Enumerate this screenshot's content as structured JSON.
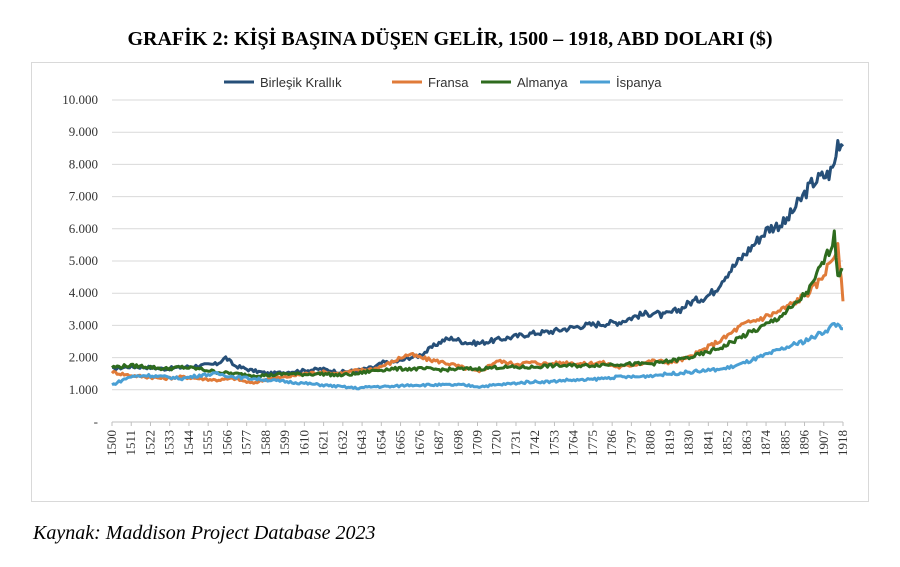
{
  "title": "GRAFİK 2: KİŞİ BAŞINA DÜŞEN GELİR, 1500 – 1918, ABD DOLARI ($)",
  "source": "Kaynak: Maddison Project Database 2023",
  "chart_data": {
    "type": "line",
    "title": "GRAFİK 2: KİŞİ BAŞINA DÜŞEN GELİR, 1500 – 1918, ABD DOLARI ($)",
    "xlabel": "",
    "ylabel": "",
    "xlim": [
      1500,
      1918
    ],
    "ylim": [
      0,
      10000
    ],
    "grid": true,
    "legend": "top-center",
    "y_ticks": [
      {
        "value": 0,
        "label": "-"
      },
      {
        "value": 1000,
        "label": "1.000"
      },
      {
        "value": 2000,
        "label": "2.000"
      },
      {
        "value": 3000,
        "label": "3.000"
      },
      {
        "value": 4000,
        "label": "4.000"
      },
      {
        "value": 5000,
        "label": "5.000"
      },
      {
        "value": 6000,
        "label": "6.000"
      },
      {
        "value": 7000,
        "label": "7.000"
      },
      {
        "value": 8000,
        "label": "8.000"
      },
      {
        "value": 9000,
        "label": "9.000"
      },
      {
        "value": 10000,
        "label": "10.000"
      }
    ],
    "x_ticks": [
      1500,
      1511,
      1522,
      1533,
      1544,
      1555,
      1566,
      1577,
      1588,
      1599,
      1610,
      1621,
      1632,
      1643,
      1654,
      1665,
      1676,
      1687,
      1698,
      1709,
      1720,
      1731,
      1742,
      1753,
      1764,
      1775,
      1786,
      1797,
      1808,
      1819,
      1830,
      1841,
      1852,
      1863,
      1874,
      1885,
      1896,
      1907,
      1918
    ],
    "series": [
      {
        "name": "Birleşik Krallık",
        "color": "#264f78",
        "x": [
          1500,
          1510,
          1520,
          1530,
          1540,
          1550,
          1560,
          1565,
          1570,
          1580,
          1590,
          1600,
          1610,
          1620,
          1630,
          1640,
          1650,
          1655,
          1660,
          1665,
          1670,
          1675,
          1680,
          1685,
          1690,
          1695,
          1700,
          1705,
          1710,
          1715,
          1720,
          1730,
          1740,
          1750,
          1760,
          1770,
          1780,
          1790,
          1800,
          1810,
          1815,
          1820,
          1825,
          1830,
          1835,
          1840,
          1845,
          1850,
          1855,
          1860,
          1865,
          1870,
          1875,
          1880,
          1885,
          1890,
          1895,
          1900,
          1905,
          1910,
          1913,
          1915,
          1918
        ],
        "y": [
          1650,
          1720,
          1700,
          1650,
          1700,
          1750,
          1800,
          2000,
          1750,
          1600,
          1500,
          1550,
          1600,
          1650,
          1550,
          1600,
          1700,
          1850,
          1850,
          1900,
          2000,
          2050,
          2200,
          2400,
          2550,
          2600,
          2500,
          2450,
          2450,
          2500,
          2550,
          2650,
          2750,
          2800,
          2900,
          3000,
          3050,
          3100,
          3300,
          3400,
          3300,
          3400,
          3500,
          3700,
          3800,
          3900,
          4100,
          4500,
          4800,
          5100,
          5400,
          5700,
          6000,
          6100,
          6200,
          6600,
          7000,
          7400,
          7600,
          7700,
          8000,
          8700,
          8650
        ]
      },
      {
        "name": "Fransa",
        "color": "#e07b39",
        "x": [
          1500,
          1510,
          1520,
          1530,
          1540,
          1550,
          1560,
          1570,
          1580,
          1590,
          1600,
          1610,
          1620,
          1630,
          1640,
          1650,
          1660,
          1665,
          1670,
          1680,
          1690,
          1700,
          1710,
          1720,
          1730,
          1740,
          1750,
          1760,
          1770,
          1780,
          1790,
          1800,
          1810,
          1820,
          1830,
          1840,
          1850,
          1860,
          1870,
          1880,
          1890,
          1900,
          1905,
          1910,
          1913,
          1915,
          1918
        ],
        "y": [
          1550,
          1450,
          1400,
          1350,
          1400,
          1350,
          1300,
          1350,
          1200,
          1350,
          1400,
          1500,
          1550,
          1500,
          1600,
          1650,
          1850,
          2000,
          2100,
          1950,
          1850,
          1700,
          1550,
          1900,
          1800,
          1850,
          1800,
          1850,
          1800,
          1850,
          1700,
          1800,
          1900,
          1850,
          2000,
          2300,
          2600,
          3000,
          3200,
          3400,
          3700,
          4100,
          4400,
          4900,
          5200,
          5400,
          3800
        ]
      },
      {
        "name": "Almanya",
        "color": "#2e6b1e",
        "x": [
          1500,
          1510,
          1520,
          1530,
          1540,
          1550,
          1560,
          1570,
          1580,
          1590,
          1600,
          1610,
          1620,
          1630,
          1640,
          1650,
          1660,
          1670,
          1680,
          1690,
          1700,
          1710,
          1720,
          1730,
          1740,
          1750,
          1760,
          1770,
          1780,
          1790,
          1800,
          1810,
          1820,
          1830,
          1840,
          1850,
          1860,
          1870,
          1880,
          1890,
          1900,
          1905,
          1910,
          1913,
          1915,
          1918
        ],
        "y": [
          1700,
          1750,
          1720,
          1650,
          1700,
          1650,
          1550,
          1500,
          1450,
          1450,
          1500,
          1480,
          1500,
          1450,
          1500,
          1600,
          1650,
          1650,
          1650,
          1620,
          1650,
          1650,
          1700,
          1700,
          1700,
          1750,
          1750,
          1750,
          1780,
          1800,
          1800,
          1820,
          1900,
          2000,
          2150,
          2350,
          2650,
          2900,
          3200,
          3600,
          4200,
          4800,
          5300,
          5800,
          4600,
          4800
        ]
      },
      {
        "name": "İspanya",
        "color": "#4a9fd4",
        "x": [
          1500,
          1510,
          1520,
          1530,
          1540,
          1550,
          1560,
          1570,
          1580,
          1590,
          1600,
          1610,
          1620,
          1630,
          1640,
          1650,
          1660,
          1670,
          1680,
          1690,
          1700,
          1710,
          1720,
          1730,
          1740,
          1750,
          1760,
          1770,
          1780,
          1790,
          1800,
          1810,
          1820,
          1830,
          1840,
          1850,
          1860,
          1870,
          1880,
          1890,
          1900,
          1905,
          1910,
          1913,
          1918
        ],
        "y": [
          1150,
          1400,
          1450,
          1400,
          1350,
          1450,
          1500,
          1400,
          1350,
          1300,
          1250,
          1200,
          1150,
          1100,
          1050,
          1100,
          1100,
          1150,
          1150,
          1150,
          1150,
          1100,
          1150,
          1200,
          1250,
          1250,
          1300,
          1300,
          1350,
          1400,
          1400,
          1450,
          1500,
          1550,
          1600,
          1650,
          1800,
          2000,
          2200,
          2400,
          2600,
          2750,
          2900,
          3050,
          2950
        ]
      }
    ]
  }
}
